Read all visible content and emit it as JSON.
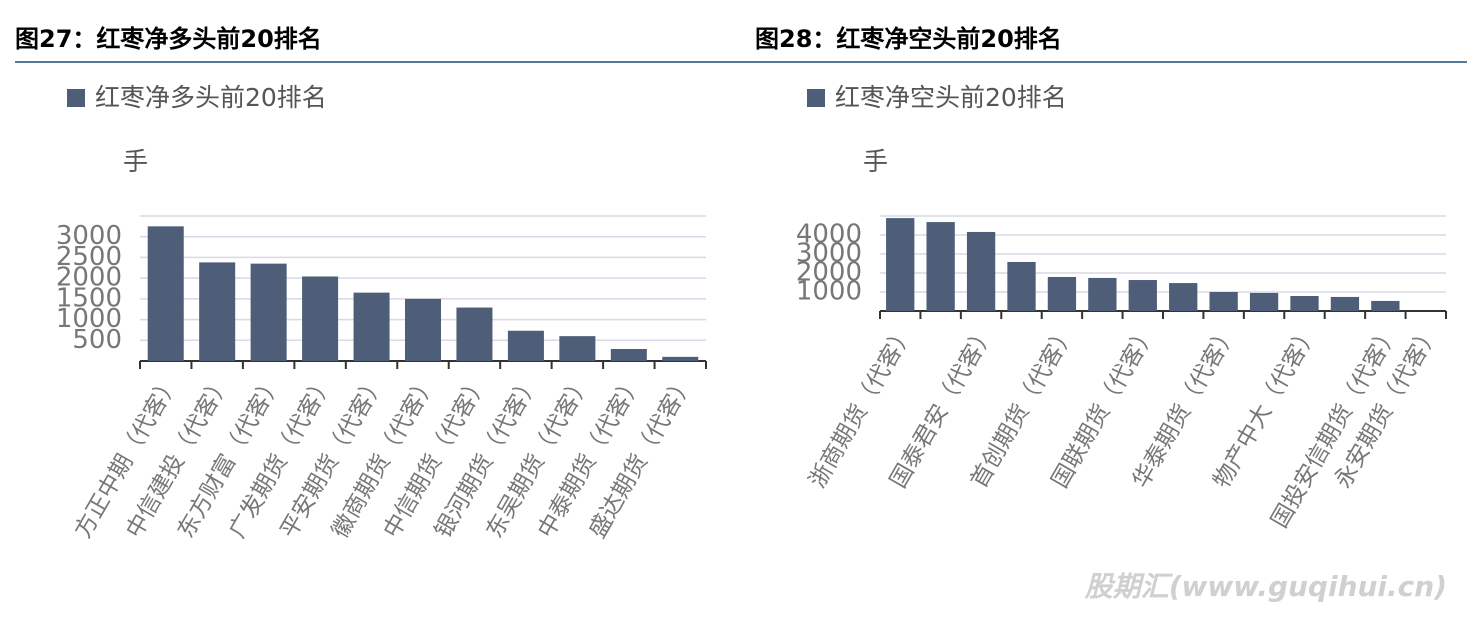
{
  "chart_data": [
    {
      "type": "bar",
      "title": "图27：红枣净多头前20排名",
      "ylabel": "手",
      "categories": [
        "方正中期（代客）",
        "中信建投（代客）",
        "东方财富（代客）",
        "广发期货（代客）",
        "平安期货（代客）",
        "徽商期货（代客）",
        "中信期货（代客）",
        "银河期货（代客）",
        "东吴期货（代客）",
        "中泰期货（代客）",
        "盛达期货（代客）"
      ],
      "series": [
        {
          "name": "红枣净多头前20排名",
          "color": "#4e5d78",
          "values": [
            3250,
            2380,
            2350,
            2040,
            1650,
            1500,
            1290,
            730,
            600,
            290,
            100
          ]
        }
      ],
      "ylim": [
        0,
        3500
      ],
      "yticks": [
        500,
        1000,
        1500,
        2000,
        2500,
        3000
      ],
      "grid": true
    },
    {
      "type": "bar",
      "title": "图28：红枣净空头前20排名",
      "ylabel": "手",
      "categories": [
        "浙商期货（代客）",
        null,
        "国泰君安（代客）",
        null,
        "首创期货（代客）",
        null,
        "国联期货（代客）",
        null,
        "华泰期货（代客）",
        null,
        "物产中大（代客）",
        null,
        "国投安信期货（代客）",
        "永安期货（代客）"
      ],
      "series": [
        {
          "name": "红枣净空头前20排名",
          "color": "#4e5d78",
          "values": [
            4890,
            4680,
            4160,
            2580,
            1790,
            1740,
            1630,
            1470,
            1000,
            950,
            790,
            740,
            530,
            null
          ]
        }
      ],
      "ylim": [
        0,
        5000
      ],
      "yticks": [
        1000,
        2000,
        3000,
        4000
      ],
      "grid": true
    }
  ],
  "watermark": "股期汇(www.guqihui.cn)"
}
